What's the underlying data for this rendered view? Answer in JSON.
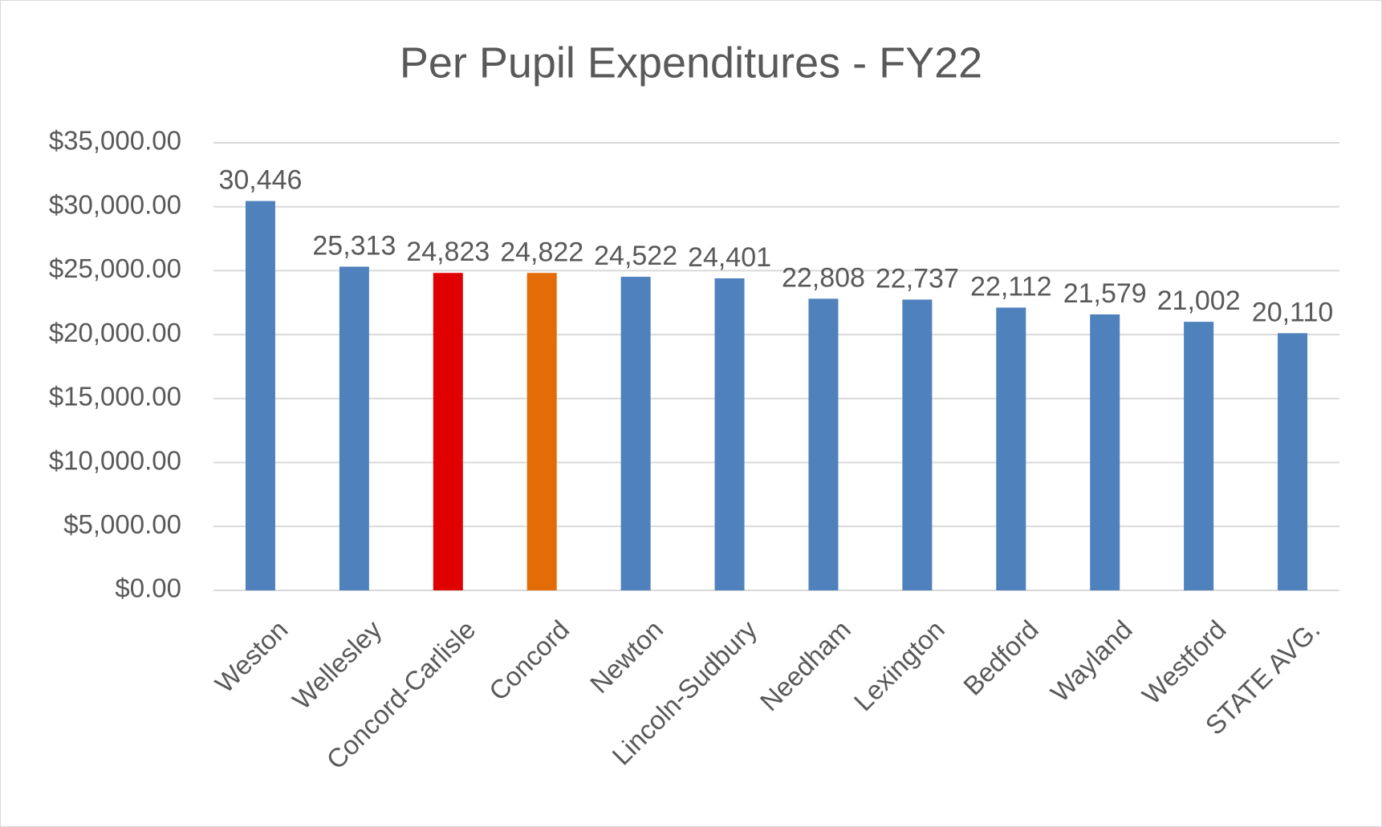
{
  "chart_data": {
    "type": "bar",
    "title": "Per Pupil Expenditures - FY22",
    "categories": [
      "Weston",
      "Wellesley",
      "Concord-Carlisle",
      "Concord",
      "Newton",
      "Lincoln-Sudbury",
      "Needham",
      "Lexington",
      "Bedford",
      "Wayland",
      "Westford",
      "STATE AVG."
    ],
    "values": [
      30446,
      25313,
      24823,
      24822,
      24522,
      24401,
      22808,
      22737,
      22112,
      21579,
      21002,
      20110
    ],
    "value_labels": [
      "30,446",
      "25,313",
      "24,823",
      "24,822",
      "24,522",
      "24,401",
      "22,808",
      "22,737",
      "22,112",
      "21,579",
      "21,002",
      "20,110"
    ],
    "colors": [
      "#4f81bd",
      "#4f81bd",
      "#e00000",
      "#e36c09",
      "#4f81bd",
      "#4f81bd",
      "#4f81bd",
      "#4f81bd",
      "#4f81bd",
      "#4f81bd",
      "#4f81bd",
      "#4f81bd"
    ],
    "ylim": [
      0,
      35000
    ],
    "yticks": [
      {
        "value": 0,
        "label": "$0.00"
      },
      {
        "value": 5000,
        "label": "$5,000.00"
      },
      {
        "value": 10000,
        "label": "$10,000.00"
      },
      {
        "value": 15000,
        "label": "$15,000.00"
      },
      {
        "value": 20000,
        "label": "$20,000.00"
      },
      {
        "value": 25000,
        "label": "$25,000.00"
      },
      {
        "value": 30000,
        "label": "$30,000.00"
      },
      {
        "value": 35000,
        "label": "$35,000.00"
      }
    ],
    "grid": true
  }
}
